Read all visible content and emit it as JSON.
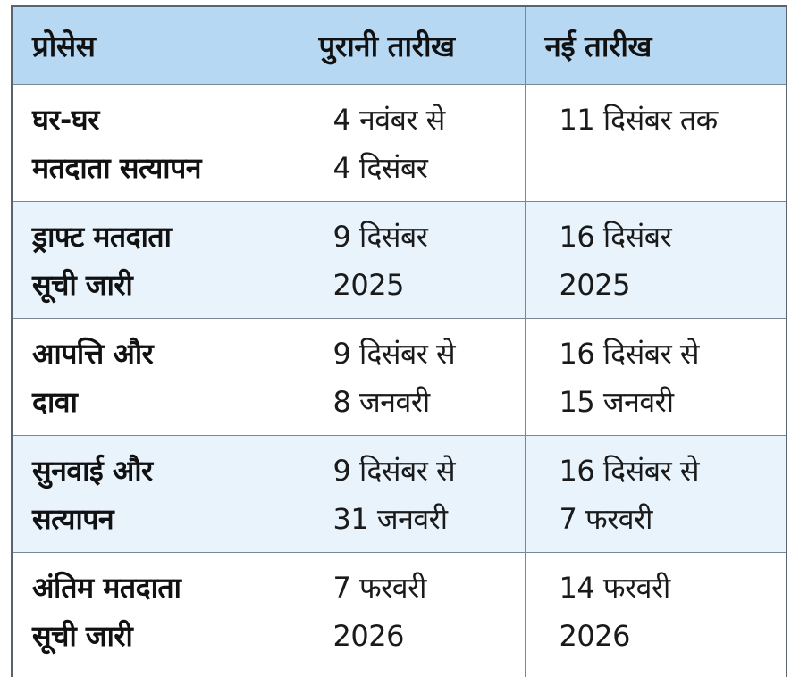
{
  "table": {
    "headers": {
      "process": "प्रोसेस",
      "old_date": "पुरानी तारीख",
      "new_date": "नई तारीख"
    },
    "rows": [
      {
        "process": [
          "घर-घर",
          "मतदाता सत्यापन"
        ],
        "old_date": [
          "4 नवंबर से",
          "4 दिसंबर"
        ],
        "new_date": [
          "11 दिसंबर तक"
        ]
      },
      {
        "process": [
          "ड्राफ्ट मतदाता",
          "सूची जारी"
        ],
        "old_date": [
          "9 दिसंबर",
          "2025"
        ],
        "new_date": [
          "16 दिसंबर",
          "2025"
        ]
      },
      {
        "process": [
          "आपत्ति और",
          "दावा"
        ],
        "old_date": [
          "9 दिसंबर से",
          "8 जनवरी"
        ],
        "new_date": [
          "16 दिसंबर से",
          "15 जनवरी"
        ]
      },
      {
        "process": [
          "सुनवाई और",
          "सत्यापन"
        ],
        "old_date": [
          "9 दिसंबर से",
          "31 जनवरी"
        ],
        "new_date": [
          "16 दिसंबर से",
          "7 फरवरी"
        ]
      },
      {
        "process": [
          "अंतिम मतदाता",
          "सूची जारी"
        ],
        "old_date": [
          "7 फरवरी",
          "2026"
        ],
        "new_date": [
          "14 फरवरी",
          "2026"
        ]
      }
    ]
  },
  "colors": {
    "header_bg": "#b6d8f2",
    "row_alt_bg": "#e9f3fc",
    "border": "#7a8794"
  }
}
